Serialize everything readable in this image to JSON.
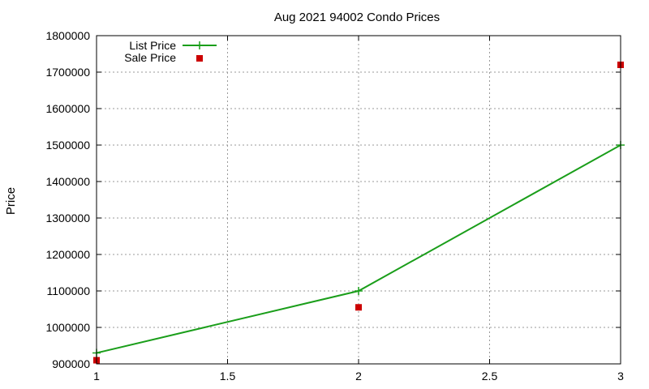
{
  "chart_data": {
    "type": "line",
    "title": "Aug 2021 94002 Condo Prices",
    "xlabel": "",
    "ylabel": "Price",
    "xlim": [
      1,
      3
    ],
    "ylim": [
      900000,
      1800000
    ],
    "xticks": [
      "1",
      "1.5",
      "2",
      "2.5",
      "3"
    ],
    "yticks": [
      "900000",
      "1000000",
      "1100000",
      "1200000",
      "1300000",
      "1400000",
      "1500000",
      "1600000",
      "1700000",
      "1800000"
    ],
    "grid": true,
    "legend_position": "top-left",
    "series": [
      {
        "name": "List Price",
        "style": "line-with-plus",
        "color": "#1a9e1a",
        "x": [
          1,
          2,
          3
        ],
        "y": [
          930000,
          1100000,
          1500000
        ]
      },
      {
        "name": "Sale Price",
        "style": "square-points",
        "color": "#cc0000",
        "x": [
          1,
          2,
          3
        ],
        "y": [
          910000,
          1055000,
          1720000
        ]
      }
    ]
  }
}
